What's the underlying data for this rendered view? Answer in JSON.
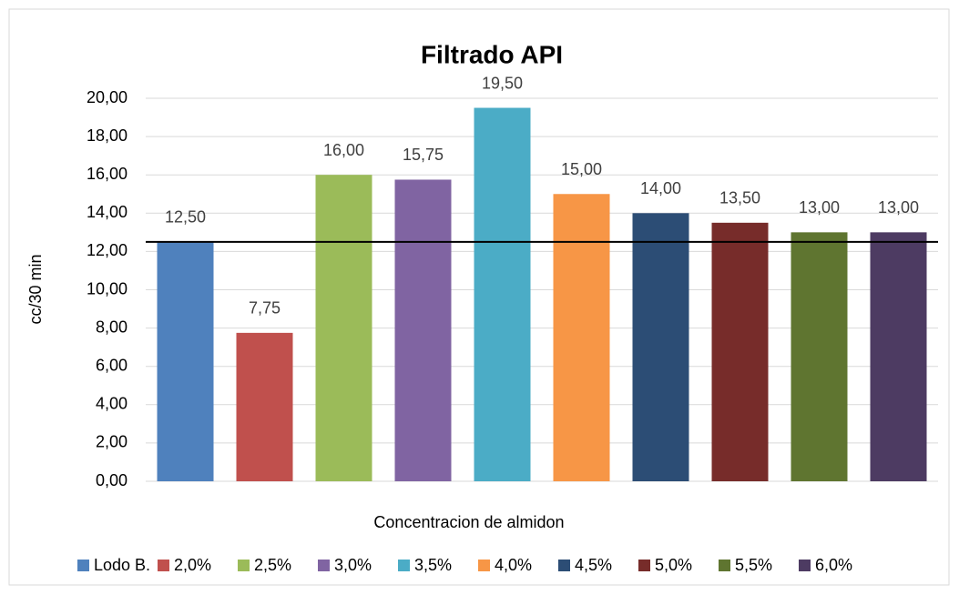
{
  "chart_data": {
    "type": "bar",
    "title": "Filtrado API",
    "y_label": "cc/30 min",
    "x_label": "Concentracion de almidon",
    "categories": [
      "Lodo B.",
      "2,0%",
      "2,5%",
      "3,0%",
      "3,5%",
      "4,0%",
      "4,5%",
      "5,0%",
      "5,5%",
      "6,0%"
    ],
    "values": [
      12.5,
      7.75,
      16,
      15.75,
      19.5,
      15,
      14,
      13.5,
      13,
      13
    ],
    "value_labels": [
      "12,50",
      "7,75",
      "16,00",
      "15,75",
      "19,50",
      "15,00",
      "14,00",
      "13,50",
      "13,00",
      "13,00"
    ],
    "colors": [
      "#4f81bd",
      "#c0504d",
      "#9bbb59",
      "#8064a2",
      "#4bacc6",
      "#f79646",
      "#2c4d75",
      "#772c2a",
      "#5f7530",
      "#4d3b62"
    ],
    "ylim": [
      0,
      20
    ],
    "yticks": [
      {
        "value": 0,
        "label": "0,00"
      },
      {
        "value": 2,
        "label": "2,00"
      },
      {
        "value": 4,
        "label": "4,00"
      },
      {
        "value": 6,
        "label": "6,00"
      },
      {
        "value": 8,
        "label": "8,00"
      },
      {
        "value": 10,
        "label": "10,00"
      },
      {
        "value": 12,
        "label": "12,00"
      },
      {
        "value": 14,
        "label": "14,00"
      },
      {
        "value": 16,
        "label": "16,00"
      },
      {
        "value": 18,
        "label": "18,00"
      },
      {
        "value": 20,
        "label": "20,00"
      }
    ],
    "reference_line": 12.5,
    "grid": true,
    "legend": "bottom"
  }
}
